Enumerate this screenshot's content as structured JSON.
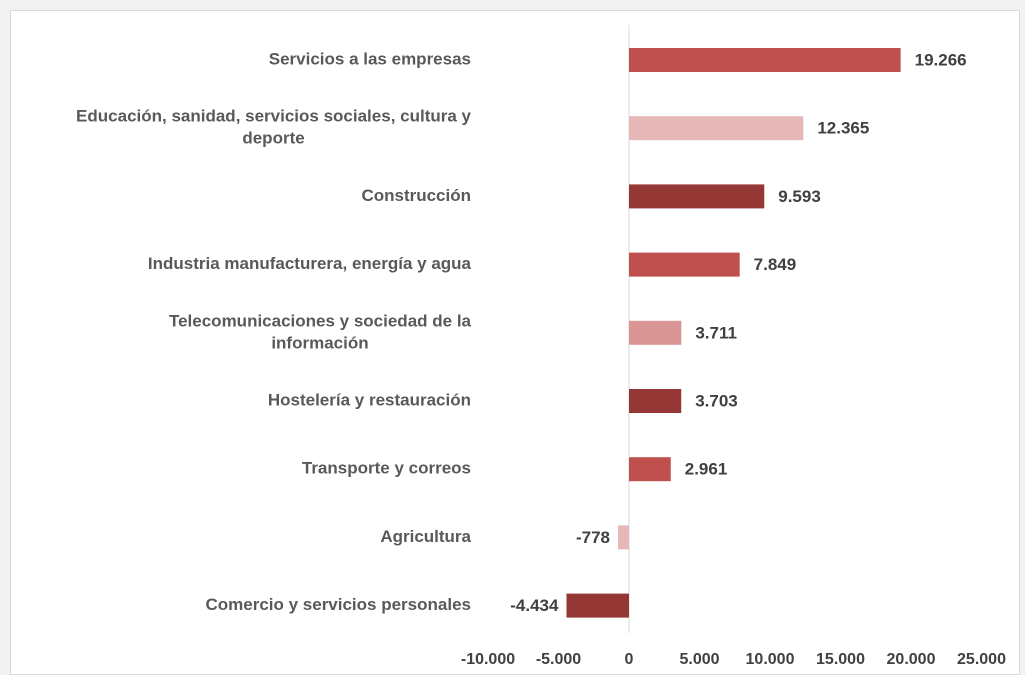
{
  "chart_data": {
    "type": "bar",
    "orientation": "horizontal",
    "categories": [
      [
        "Servicios a las empresas"
      ],
      [
        "Educación, sanidad, servicios sociales, cultura y",
        "deporte"
      ],
      [
        "Construcción"
      ],
      [
        "Industria manufacturera, energía y agua"
      ],
      [
        "Telecomunicaciones y sociedad de la",
        "información"
      ],
      [
        "Hostelería y restauración"
      ],
      [
        "Transporte y correos"
      ],
      [
        "Agricultura"
      ],
      [
        "Comercio y servicios personales"
      ]
    ],
    "values": [
      19266,
      12365,
      9593,
      7849,
      3711,
      3703,
      2961,
      -778,
      -4434
    ],
    "value_labels": [
      "19.266",
      "12.365",
      "9.593",
      "7.849",
      "3.711",
      "3.703",
      "2.961",
      "-778",
      "-4.434"
    ],
    "bar_colors": [
      "#c0504d",
      "#e6b9b8",
      "#953735",
      "#c0504d",
      "#d99694",
      "#953735",
      "#c0504d",
      "#e6b9b8",
      "#953735"
    ],
    "xlim": [
      -10000,
      25000
    ],
    "xticks": [
      -10000,
      -5000,
      0,
      5000,
      10000,
      15000,
      20000,
      25000
    ],
    "xtick_labels": [
      "-10.000",
      "-5.000",
      "0",
      "5.000",
      "10.000",
      "15.000",
      "20.000",
      "25.000"
    ],
    "title": "",
    "xlabel": "",
    "ylabel": "",
    "grid": false,
    "legend": "none"
  }
}
